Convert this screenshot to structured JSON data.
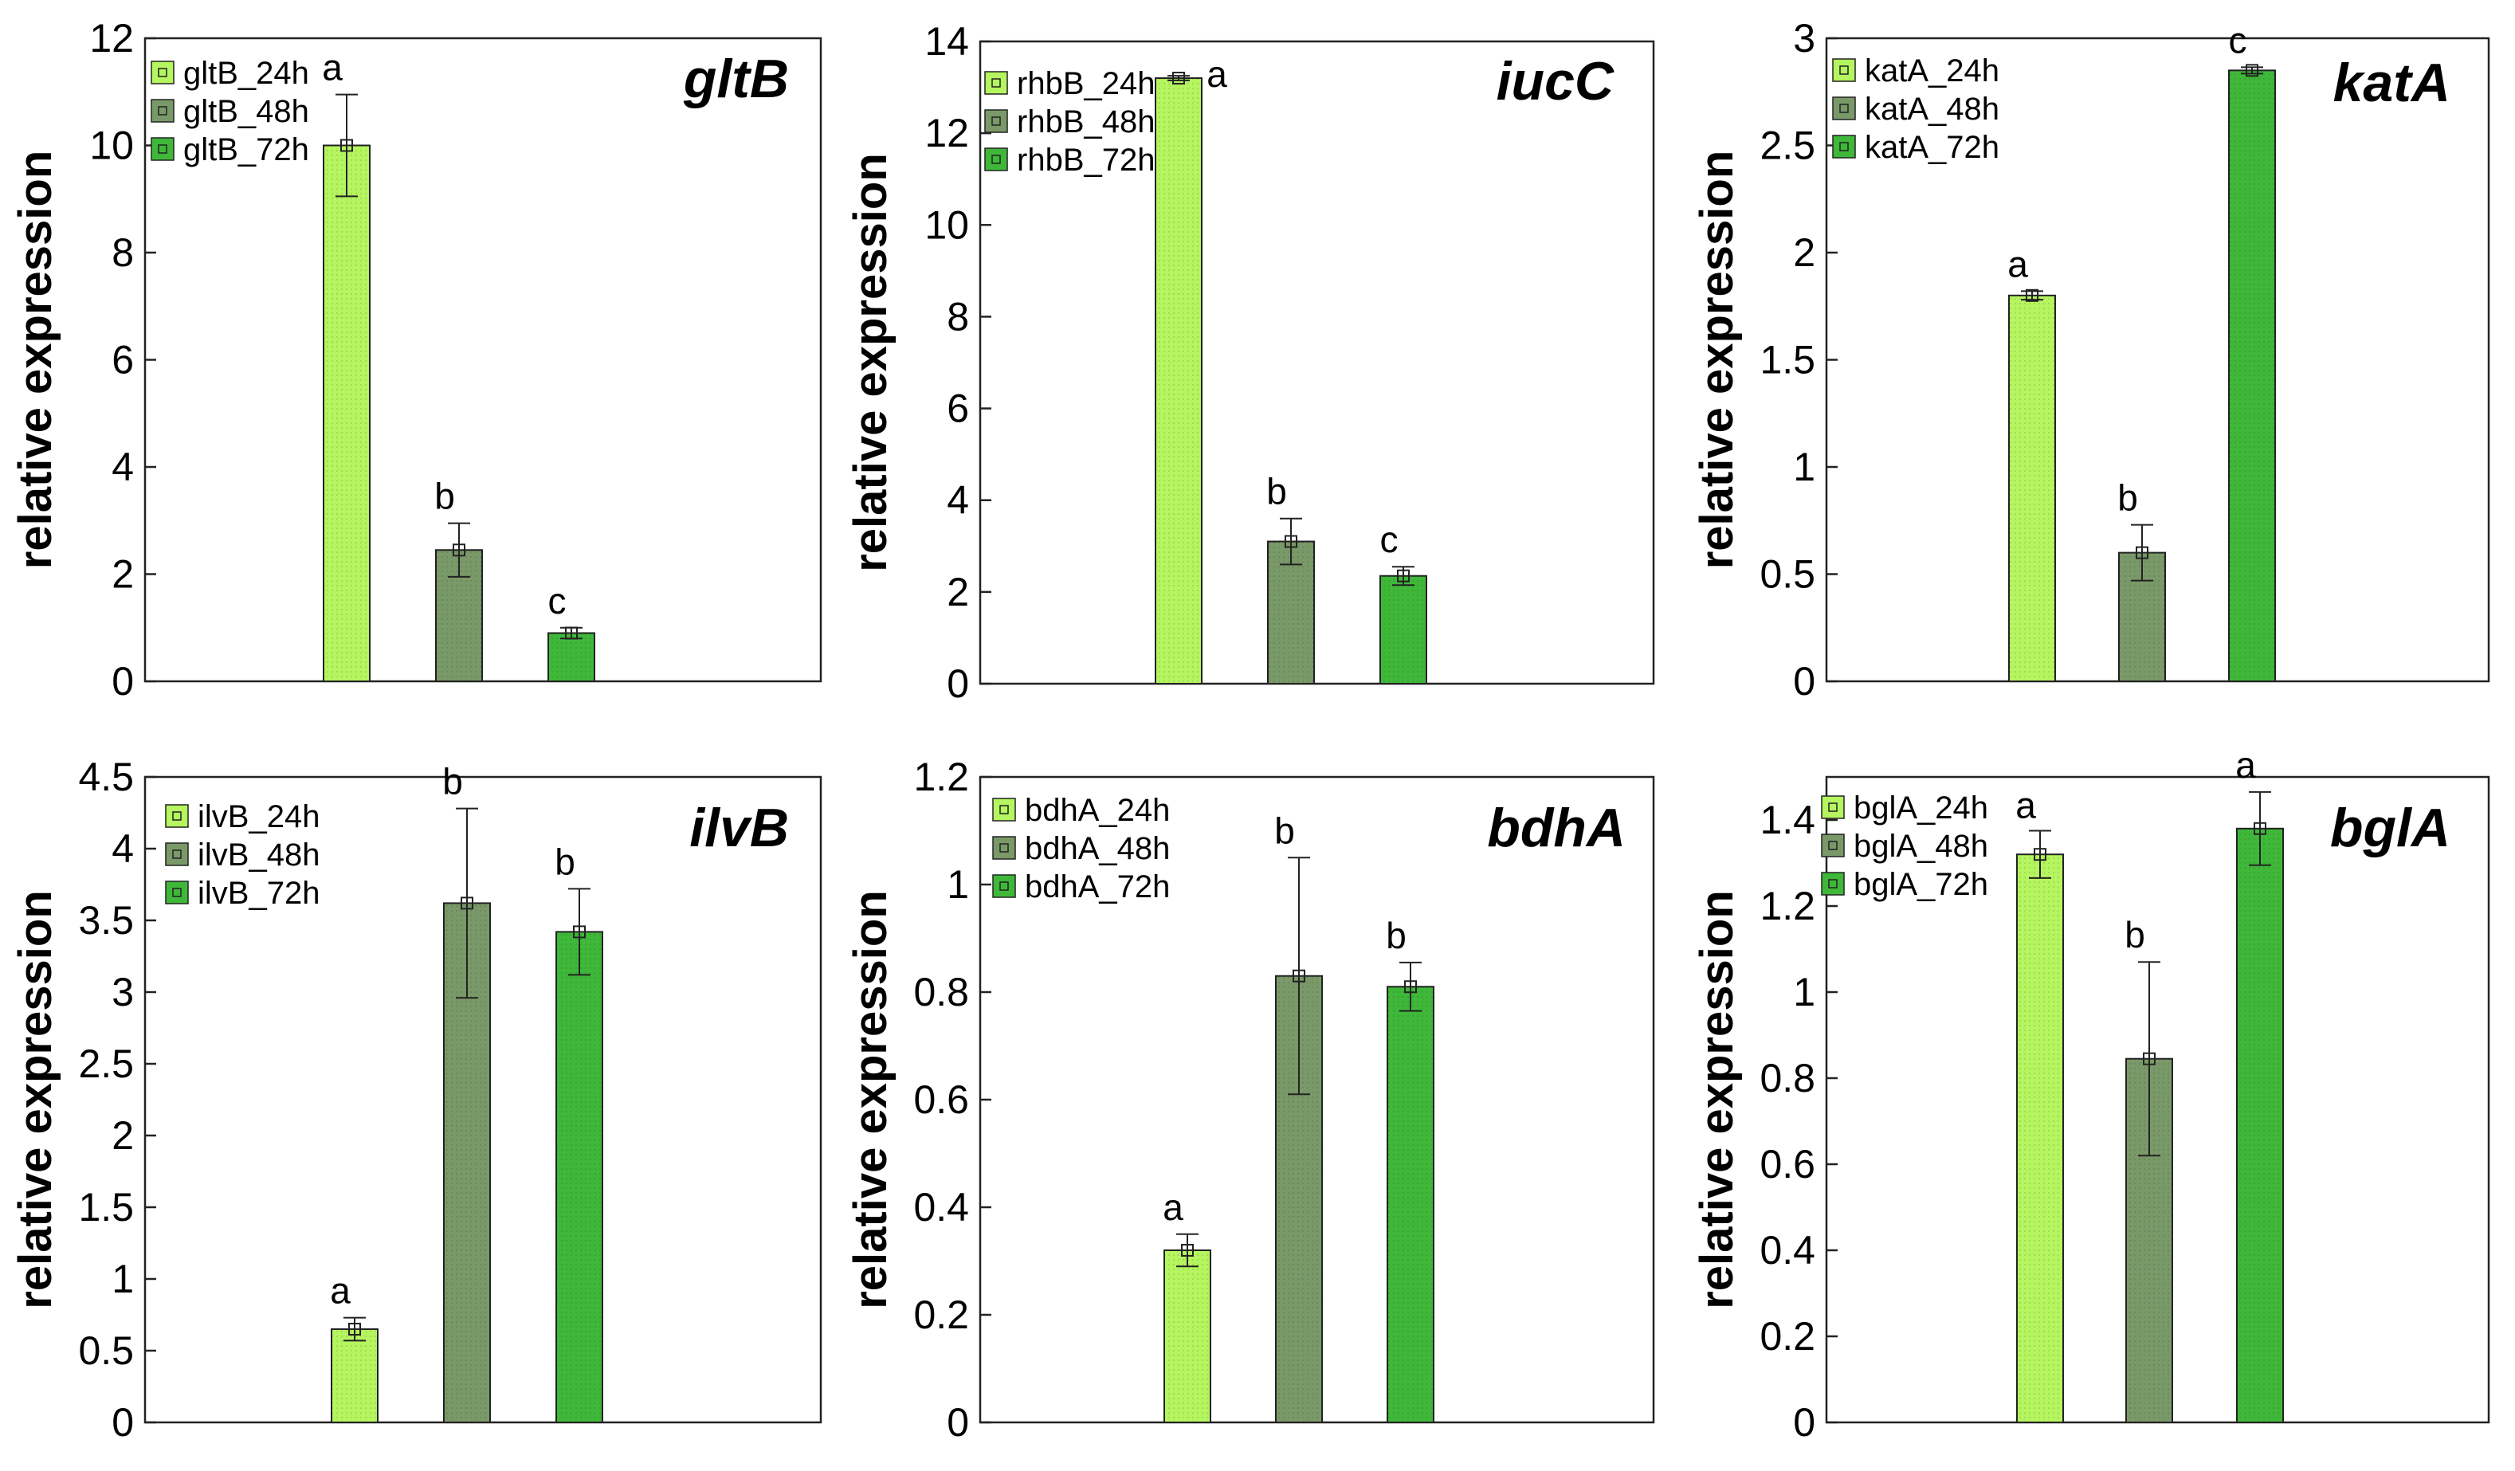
{
  "chart_data": [
    {
      "type": "bar",
      "title": "gltB",
      "ylabel": "relative expression",
      "ylim": [
        0,
        12
      ],
      "yticks": [
        0,
        2,
        4,
        6,
        8,
        10,
        12
      ],
      "ytick_labels": [
        "0",
        "2",
        "4",
        "6",
        "8",
        "10",
        "12"
      ],
      "legend": [
        "gltB_24h",
        "gltB_48h",
        "gltB_72h"
      ],
      "values": [
        10.0,
        2.45,
        0.9
      ],
      "errors": [
        0.95,
        0.5,
        0.1
      ],
      "letters": [
        "a",
        "b",
        "c"
      ]
    },
    {
      "type": "bar",
      "title": "iucC",
      "ylabel": "relative expression",
      "ylim": [
        0,
        14
      ],
      "yticks": [
        0,
        2,
        4,
        6,
        8,
        10,
        12,
        14
      ],
      "ytick_labels": [
        "0",
        "2",
        "4",
        "6",
        "8",
        "10",
        "12",
        "14"
      ],
      "legend": [
        "rhbB_24h",
        "rhbB_48h",
        "rhbB_72h"
      ],
      "values": [
        13.2,
        3.1,
        2.35
      ],
      "errors": [
        0.05,
        0.5,
        0.2
      ],
      "letters": [
        "a",
        "b",
        "c"
      ]
    },
    {
      "type": "bar",
      "title": "katA",
      "ylabel": "relative expression",
      "ylim": [
        0,
        3
      ],
      "yticks": [
        0,
        0.5,
        1,
        1.5,
        2,
        2.5,
        3
      ],
      "ytick_labels": [
        "0",
        "0.5",
        "1",
        "1.5",
        "2",
        "2.5",
        "3"
      ],
      "legend": [
        "katA_24h",
        "katA_48h",
        "katA_72h"
      ],
      "values": [
        1.8,
        0.6,
        2.85
      ],
      "errors": [
        0.02,
        0.13,
        0.015
      ],
      "letters": [
        "a",
        "b",
        "c"
      ]
    },
    {
      "type": "bar",
      "title": "ilvB",
      "ylabel": "relative expression",
      "ylim": [
        0,
        4.5
      ],
      "yticks": [
        0,
        0.5,
        1,
        1.5,
        2,
        2.5,
        3,
        3.5,
        4,
        4.5
      ],
      "ytick_labels": [
        "0",
        "0.5",
        "1",
        "1.5",
        "2",
        "2.5",
        "3",
        "3.5",
        "4",
        "4.5"
      ],
      "legend": [
        "ilvB_24h",
        "ilvB_48h",
        "ilvB_72h"
      ],
      "values": [
        0.65,
        3.62,
        3.42
      ],
      "errors": [
        0.08,
        0.66,
        0.3
      ],
      "letters": [
        "a",
        "b",
        "b"
      ]
    },
    {
      "type": "bar",
      "title": "bdhA",
      "ylabel": "relative expression",
      "ylim": [
        0,
        1.2
      ],
      "yticks": [
        0,
        0.2,
        0.4,
        0.6,
        0.8,
        1,
        1.2
      ],
      "ytick_labels": [
        "0",
        "0.2",
        "0.4",
        "0.6",
        "0.8",
        "1",
        "1.2"
      ],
      "legend": [
        "bdhA_24h",
        "bdhA_48h",
        "bdhA_72h"
      ],
      "values": [
        0.32,
        0.83,
        0.81
      ],
      "errors": [
        0.03,
        0.22,
        0.045
      ],
      "letters": [
        "a",
        "b",
        "b"
      ]
    },
    {
      "type": "bar",
      "title": "bglA",
      "ylabel": "relative expression",
      "ylim": [
        0,
        1.5
      ],
      "yticks": [
        0,
        0.2,
        0.4,
        0.6,
        0.8,
        1,
        1.2,
        1.4
      ],
      "ytick_labels": [
        "0",
        "0.2",
        "0.4",
        "0.6",
        "0.8",
        "1",
        "1.2",
        "1.4"
      ],
      "legend": [
        "bglA_24h",
        "bglA_48h",
        "bglA_72h"
      ],
      "values": [
        1.32,
        0.845,
        1.38
      ],
      "errors": [
        0.055,
        0.225,
        0.085
      ],
      "letters": [
        "a",
        "b",
        "a"
      ]
    }
  ],
  "colors": {
    "bar_24h": "#b5f55f",
    "bar_48h": "#7a9968",
    "bar_72h": "#3fb839",
    "axis": "#222222"
  }
}
